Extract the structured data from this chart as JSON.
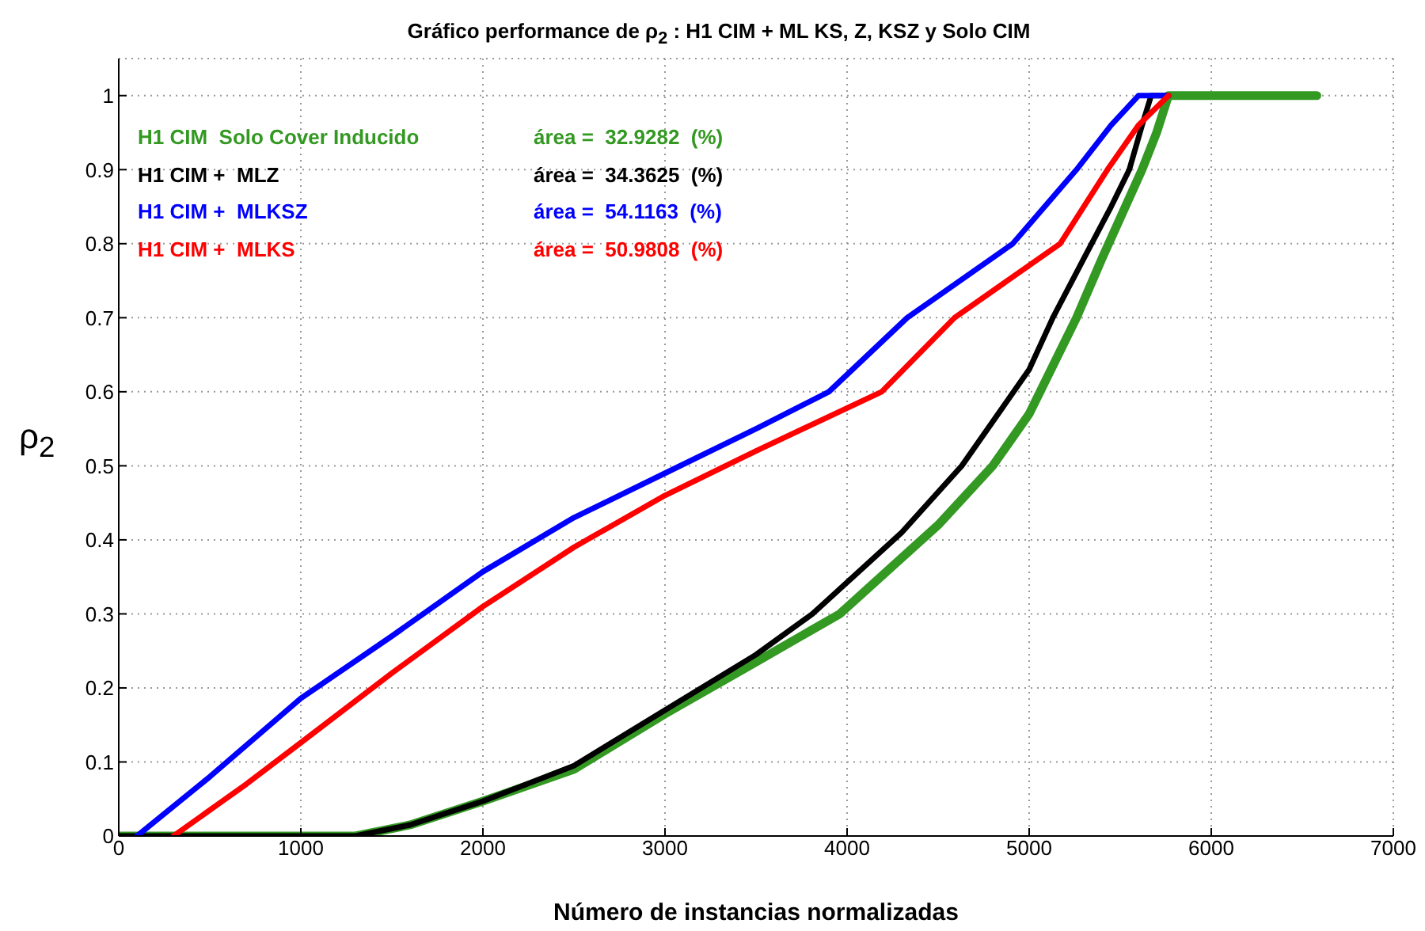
{
  "chart_data": {
    "type": "line",
    "title": "Gráfico performance de  ρ$_{2}$ : H1 CIM + ML KS, Z, KSZ  y Solo CIM",
    "xlabel": "Número de instancias normalizadas",
    "ylabel": "ρ$_{2}$",
    "xlim": [
      0,
      7000
    ],
    "xticks": [
      0,
      1000,
      2000,
      3000,
      4000,
      5000,
      6000,
      7000
    ],
    "ylim": [
      0,
      1.05
    ],
    "yticks": [
      0,
      0.1,
      0.2,
      0.3,
      0.4,
      0.5,
      0.6,
      0.7,
      0.8,
      0.9,
      1
    ],
    "grid": true,
    "legend": "top left",
    "line_style": "solid",
    "marker": "none",
    "annotations": [
      "área =  32.9282  (%)",
      "área =  34.3625  (%)",
      "área =  54.1163  (%)",
      "área =  50.9808  (%)"
    ],
    "series": [
      {
        "name": "H1 CIM  Solo Cover Inducido",
        "color": "#339922",
        "x": [
          0,
          1300,
          1600,
          2000,
          2500,
          3000,
          3500,
          3960,
          4500,
          4800,
          5000,
          5260,
          5400,
          5620,
          5700,
          5765,
          6580
        ],
        "values": [
          0,
          0,
          0.015,
          0.047,
          0.09,
          0.165,
          0.235,
          0.3,
          0.42,
          0.5,
          0.57,
          0.7,
          0.78,
          0.9,
          0.95,
          1,
          1
        ]
      },
      {
        "name": "H1 CIM +  MLZ",
        "color": "#000000",
        "x": [
          0,
          1300,
          1600,
          2000,
          2500,
          3000,
          3500,
          3810,
          4300,
          4630,
          5000,
          5130,
          5300,
          5450,
          5550,
          5620,
          5670,
          5765
        ],
        "values": [
          0,
          0,
          0.015,
          0.047,
          0.095,
          0.17,
          0.245,
          0.3,
          0.41,
          0.5,
          0.63,
          0.7,
          0.78,
          0.85,
          0.9,
          0.96,
          1,
          1
        ]
      },
      {
        "name": "H1 CIM +  MLKSZ",
        "color": "#0000ff",
        "x": [
          100,
          500,
          1000,
          1500,
          2000,
          2500,
          3000,
          3500,
          3900,
          4330,
          4910,
          5260,
          5450,
          5600,
          5765
        ],
        "values": [
          0,
          0.08,
          0.186,
          0.27,
          0.357,
          0.43,
          0.49,
          0.55,
          0.6,
          0.7,
          0.8,
          0.9,
          0.96,
          1,
          1
        ]
      },
      {
        "name": "H1 CIM +  MLKS",
        "color": "#ff0000",
        "x": [
          300,
          700,
          1000,
          1500,
          2000,
          2500,
          3000,
          3500,
          4190,
          4590,
          5170,
          5430,
          5600,
          5765
        ],
        "values": [
          0,
          0.07,
          0.126,
          0.22,
          0.31,
          0.39,
          0.46,
          0.52,
          0.6,
          0.7,
          0.8,
          0.9,
          0.96,
          1
        ]
      }
    ]
  }
}
